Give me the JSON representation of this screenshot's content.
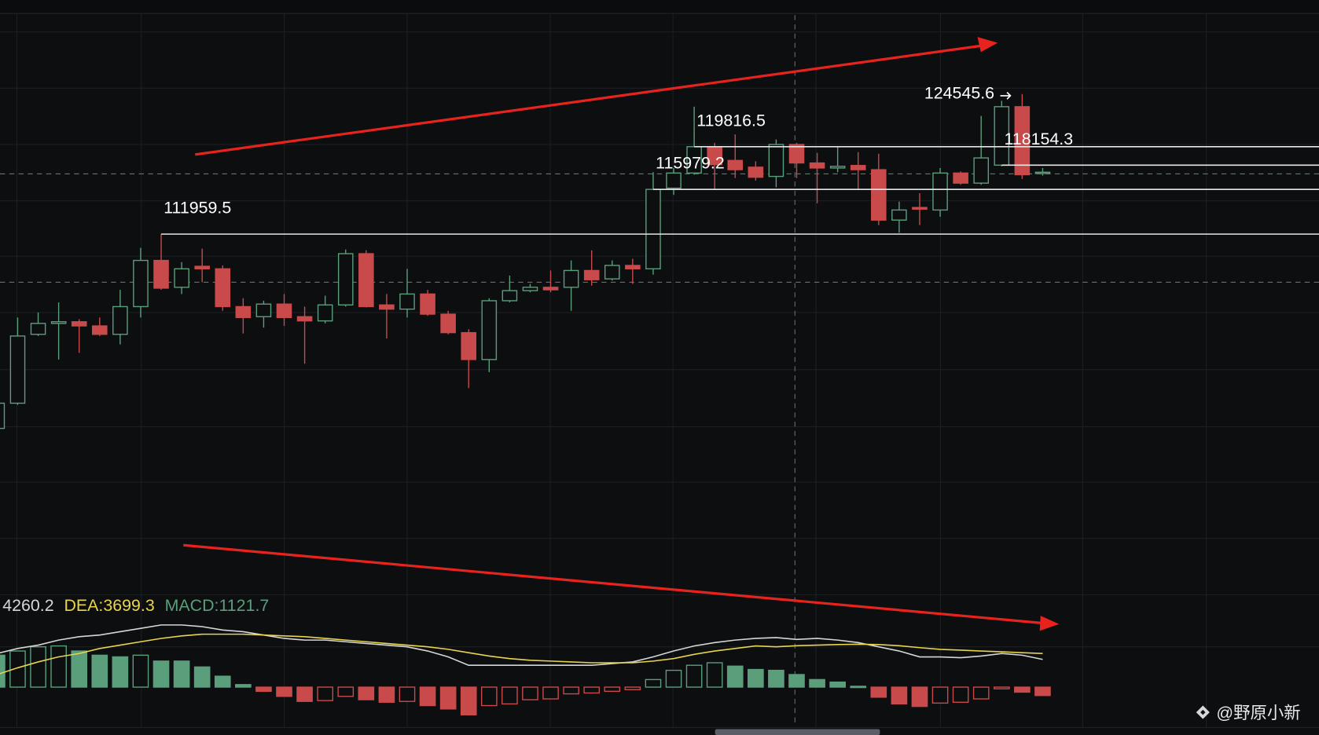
{
  "chart_data": {
    "type": "candlestick",
    "ylim": [
      80000,
      133000
    ],
    "colors": {
      "up": "#5a9e7c",
      "down": "#c94a4a"
    },
    "open": [
      94495,
      96760,
      102951,
      103932,
      104083,
      103706,
      102951,
      105442,
      109595,
      107179,
      109066,
      108840,
      105442,
      104536,
      105669,
      104536,
      104159,
      105593,
      110199,
      105593,
      105216,
      106575,
      104763,
      103102,
      100686,
      105971,
      106877,
      107179,
      107179,
      108689,
      107934,
      109142,
      108840,
      116088,
      117447,
      119788,
      118580,
      117976,
      117145,
      120014,
      118353,
      117900,
      118127,
      117749,
      113219,
      114352,
      114125,
      117447,
      116541,
      118154.3,
      123412,
      117447
    ],
    "high": [
      96911,
      104461,
      104914,
      105820,
      104310,
      104461,
      106952,
      110727,
      111959.5,
      109444,
      110652,
      109142,
      106197,
      105971,
      106575,
      105442,
      106424,
      110576,
      110501,
      106575,
      108840,
      106952,
      105065,
      103404,
      106197,
      108236,
      107481,
      108689,
      109595,
      110501,
      109595,
      109746,
      117522,
      117900,
      123412,
      120165,
      120920,
      118504,
      120467,
      120165,
      119259,
      119788,
      119334,
      119184,
      114880,
      115635,
      117900,
      117598,
      122581,
      123940,
      124545.6,
      117900
    ],
    "low": [
      94344,
      96609,
      102800,
      100686,
      101290,
      102800,
      102045,
      104461,
      106952,
      106575,
      107632,
      105065,
      103026,
      103555,
      103706,
      100308,
      103932,
      105442,
      105367,
      102573,
      104461,
      104612,
      102951,
      98119,
      99553,
      105820,
      106726,
      106726,
      105065,
      107330,
      107783,
      107481,
      108311,
      115484,
      117296,
      115937,
      116994,
      116768,
      116164,
      116994,
      114729,
      117522,
      115937,
      112766,
      112086,
      112766,
      113521,
      116390,
      116390,
      118051,
      116918,
      117220
    ],
    "close": [
      96760,
      102800,
      103932,
      104083,
      103706,
      102951,
      105442,
      109595,
      107103,
      108840,
      108840,
      105442,
      104461,
      105669,
      104461,
      104159,
      105593,
      110199,
      105442,
      105216,
      106575,
      104763,
      103102,
      100686,
      105971,
      106877,
      107179,
      106952,
      108689,
      107858,
      109142,
      108840,
      115979.2,
      117447,
      119816.5,
      118202,
      117749,
      117070,
      120014,
      118353,
      117900,
      118051,
      117749,
      113219,
      114125,
      114200,
      117447,
      116541,
      118806,
      123412,
      117296,
      117522
    ],
    "price_lines": [
      111959.5,
      115979.2,
      118154.3,
      119816.5
    ],
    "high_label": 124545.6,
    "macd": {
      "ylim": [
        -3525,
        8850
      ],
      "labels": [
        "4260.2",
        "DEA:3699.3",
        "MACD:1121.7"
      ],
      "label_colors": [
        "#d6d6d6",
        "#e8d44d",
        "#5a9e7c"
      ],
      "hist": [
        2850,
        3225,
        3600,
        3675,
        3225,
        2850,
        2700,
        2850,
        2325,
        2325,
        1800,
        975,
        225,
        -375,
        -825,
        -1275,
        -1200,
        -825,
        -1125,
        -1350,
        -1275,
        -1650,
        -1950,
        -2475,
        -1650,
        -1500,
        -1125,
        -1050,
        -600,
        -525,
        -375,
        -225,
        675,
        1500,
        1950,
        2175,
        1875,
        1575,
        1500,
        1121.7,
        675,
        450,
        75,
        -900,
        -1500,
        -1725,
        -1425,
        -1350,
        -1050,
        -150,
        -450,
        -750
      ],
      "dif": {
        "color": "#d6d6d6",
        "values": [
          3000,
          3450,
          3750,
          4200,
          4500,
          4650,
          4950,
          5250,
          5550,
          5550,
          5400,
          5100,
          4950,
          4650,
          4350,
          4200,
          4200,
          4050,
          3900,
          3750,
          3600,
          3225,
          2700,
          1950,
          1950,
          1950,
          1950,
          1950,
          1950,
          1950,
          2100,
          2250,
          2700,
          3225,
          3675,
          3975,
          4200,
          4350,
          4425,
          4260.2,
          4350,
          4200,
          3975,
          3600,
          3225,
          2700,
          2700,
          2625,
          2775,
          3000,
          2850,
          2475
        ]
      },
      "dea": {
        "color": "#e8d44d",
        "values": [
          1125,
          1725,
          2250,
          2700,
          3000,
          3450,
          3750,
          4050,
          4350,
          4575,
          4725,
          4725,
          4725,
          4650,
          4575,
          4500,
          4350,
          4200,
          4050,
          3900,
          3750,
          3600,
          3375,
          3075,
          2775,
          2550,
          2400,
          2325,
          2250,
          2175,
          2175,
          2175,
          2325,
          2550,
          2925,
          3225,
          3450,
          3675,
          3600,
          3699.3,
          3750,
          3800,
          3825,
          3800,
          3700,
          3525,
          3375,
          3300,
          3225,
          3150,
          3075,
          3000
        ]
      }
    }
  },
  "watermark": "@野原小新"
}
